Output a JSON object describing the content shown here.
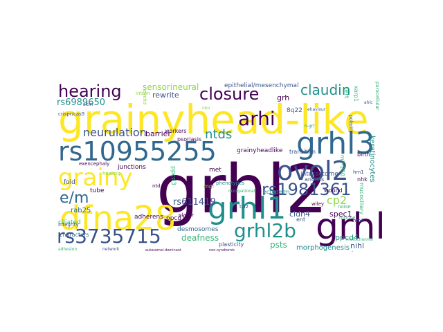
{
  "palette": {
    "purple": "#440154",
    "indigo": "#3b528b",
    "blue": "#31688e",
    "teal": "#21908d",
    "green": "#35b779",
    "lime": "#90d743",
    "yellow": "#fde725"
  },
  "words": [
    {
      "text": "grhl2",
      "color": "#440154"
    },
    {
      "text": "grainyhead-like",
      "color": "#fde725"
    },
    {
      "text": "grhl",
      "color": "#440154"
    },
    {
      "text": "dfna28",
      "color": "#fde725"
    },
    {
      "text": "rs10955255",
      "color": "#31688e"
    },
    {
      "text": "grhl1",
      "color": "#21908d"
    },
    {
      "text": "grhl3",
      "color": "#31688e"
    },
    {
      "text": "rs3735715",
      "color": "#3b528b"
    },
    {
      "text": "grainy",
      "color": "#fde725"
    },
    {
      "text": "ovol2",
      "color": "#3b528b"
    },
    {
      "text": "grhl2b",
      "color": "#21908d"
    },
    {
      "text": "closure",
      "color": "#440154"
    },
    {
      "text": "arhi",
      "color": "#440154"
    },
    {
      "text": "hearing",
      "color": "#440154"
    },
    {
      "text": "claudin",
      "color": "#21908d"
    },
    {
      "text": "rs1981361",
      "color": "#3b528b"
    },
    {
      "text": "e/m",
      "color": "#31688e"
    },
    {
      "text": "neurulation",
      "color": "#3b528b"
    },
    {
      "text": "ntds",
      "color": "#21908d"
    },
    {
      "text": "cp2",
      "color": "#90d743"
    },
    {
      "text": "rs6989650",
      "color": "#21908d"
    },
    {
      "text": "sensorineural",
      "color": "#90d743"
    },
    {
      "text": "rewrite",
      "color": "#3b528b"
    },
    {
      "text": "epithelial/mesenchymal",
      "color": "#3b528b"
    },
    {
      "text": "grh",
      "color": "#440154"
    },
    {
      "text": "barrier",
      "color": "#440154"
    },
    {
      "text": "workers",
      "color": "#440154"
    },
    {
      "text": "rs611419",
      "color": "#3b528b"
    },
    {
      "text": "deafness",
      "color": "#35b779"
    },
    {
      "text": "psts",
      "color": "#35b779"
    },
    {
      "text": "spec1",
      "color": "#440154"
    },
    {
      "text": "zeb1",
      "color": "#440154"
    },
    {
      "text": "cldn4",
      "color": "#3b528b"
    },
    {
      "text": "ppcd4",
      "color": "#21908d"
    },
    {
      "text": "nihl",
      "color": "#3b528b"
    },
    {
      "text": "rime",
      "color": "#3b528b"
    },
    {
      "text": "morphogenesis",
      "color": "#21908d"
    },
    {
      "text": "desmosomes",
      "color": "#31688e"
    },
    {
      "text": "plasticity",
      "color": "#3b528b"
    },
    {
      "text": "ciliated",
      "color": "#35b779"
    },
    {
      "text": "rab25",
      "color": "#31688e"
    },
    {
      "text": "characters",
      "color": "#31688e"
    },
    {
      "text": "junctions",
      "color": "#440154"
    },
    {
      "text": "tube",
      "color": "#440154"
    },
    {
      "text": "adherens",
      "color": "#440154"
    },
    {
      "text": "fold",
      "color": "#3b528b"
    },
    {
      "text": "grainyheadlike",
      "color": "#440154"
    },
    {
      "text": "interactome",
      "color": "#3b528b"
    },
    {
      "text": "transition",
      "color": "#3b528b"
    },
    {
      "text": "birth",
      "color": "#440154"
    },
    {
      "text": "keratinocytes",
      "color": "#21908d"
    },
    {
      "text": "mir-200",
      "color": "#35b779"
    },
    {
      "text": "anoikis",
      "color": "#3b528b"
    },
    {
      "text": "ectoderm",
      "color": "#21908d"
    },
    {
      "text": "wound",
      "color": "#440154"
    },
    {
      "text": "psoriasis",
      "color": "#440154"
    },
    {
      "text": "met",
      "color": "#440154"
    },
    {
      "text": "ppcd3",
      "color": "#35b779"
    },
    {
      "text": "ppcd1",
      "color": "#440154"
    },
    {
      "text": "planar",
      "color": "#440154"
    },
    {
      "text": "ntd",
      "color": "#440154"
    },
    {
      "text": "8q22",
      "color": "#3b528b"
    },
    {
      "text": "healing",
      "color": "#90d743"
    },
    {
      "text": "integrity",
      "color": "#3b528b"
    },
    {
      "text": "exencephaly",
      "color": "#440154"
    },
    {
      "text": "skin",
      "color": "#3b528b"
    },
    {
      "text": "crispr/cas9",
      "color": "#3b528b"
    },
    {
      "text": "eyelid",
      "color": "#90d743"
    },
    {
      "text": "intron",
      "color": "#90d743"
    },
    {
      "text": "nhk",
      "color": "#440154"
    },
    {
      "text": "hm1",
      "color": "#3b528b"
    },
    {
      "text": "polarity",
      "color": "#3b528b"
    },
    {
      "text": "tert",
      "color": "#35b779"
    },
    {
      "text": "noise",
      "color": "#35b779"
    },
    {
      "text": "mouse",
      "color": "#35b779"
    },
    {
      "text": "wiley",
      "color": "#440154"
    },
    {
      "text": "phenotypes",
      "color": "#21908d"
    },
    {
      "text": "hm1",
      "color": "#3b528b"
    },
    {
      "text": "adhesion",
      "color": "#35b779"
    },
    {
      "text": "network",
      "color": "#3b528b"
    },
    {
      "text": "autosomal-dominant",
      "color": "#440154"
    },
    {
      "text": "non-syndromic",
      "color": "#440154"
    },
    {
      "text": "mucociliary",
      "color": "#35b779"
    },
    {
      "text": "multichannel",
      "color": "#35b779"
    },
    {
      "text": "paracellular",
      "color": "#35b779"
    },
    {
      "text": "tcl2",
      "color": "#3b528b"
    },
    {
      "text": "ent",
      "color": "#3b528b"
    },
    {
      "text": "occupational",
      "color": "#35b779"
    },
    {
      "text": "ehaviour",
      "color": "#3b528b"
    },
    {
      "text": "nbo",
      "color": "#90d743"
    },
    {
      "text": "mgr",
      "color": "#90d743"
    },
    {
      "text": "ahlc",
      "color": "#3b528b"
    },
    {
      "text": "xarp1",
      "color": "#35b779"
    },
    {
      "text": "n-grl",
      "color": "#21908d"
    }
  ]
}
